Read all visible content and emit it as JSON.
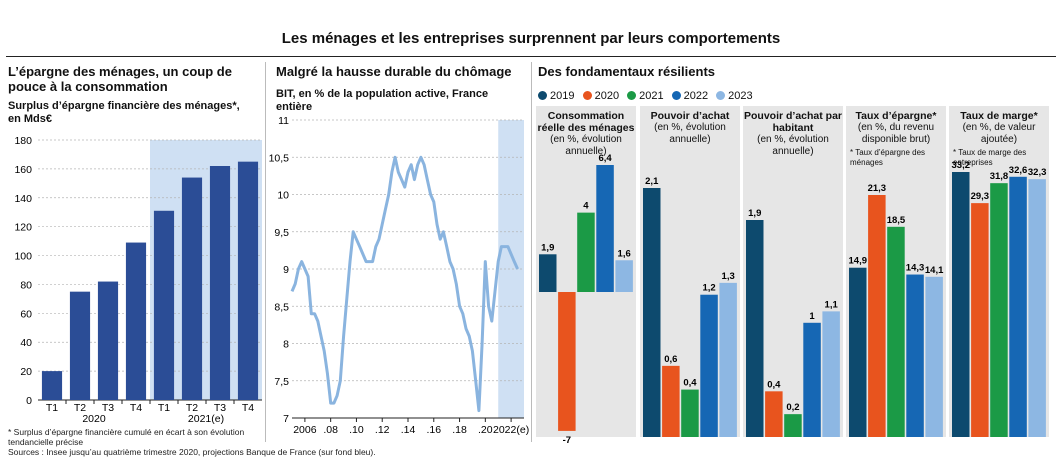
{
  "title": "Les ménages et les entreprises surprennent par leurs comportements",
  "panel1": {
    "title": "L’épargne des ménages, un coup de pouce à la consommation",
    "subtitle": "Surplus d’épargne financière des ménages*, en Mds€",
    "footnote": "* Surplus d’épargne financière cumulé en écart à son évolution tendancielle précise",
    "year_labels": [
      "2020",
      "2021(e)"
    ]
  },
  "panel2": {
    "title": "Malgré la hausse durable du chômage",
    "subtitle": "BIT, en % de la population active, France entière"
  },
  "panel3": {
    "title": "Des fondamentaux résilients",
    "subcharts": [
      {
        "title": "Consommation réelle des ménages",
        "unit": "(en %, évolution annuelle)",
        "note": ""
      },
      {
        "title": "Pouvoir d’achat",
        "unit": "(en %, évolution annuelle)",
        "note": ""
      },
      {
        "title": "Pouvoir d’achat par habitant",
        "unit": "(en %, évolution annuelle)",
        "note": ""
      },
      {
        "title": "Taux d’épargne*",
        "unit": "(en %, du revenu disponible brut)",
        "note": "* Taux d’épargne des ménages"
      },
      {
        "title": "Taux de marge*",
        "unit": "(en %, de valeur ajoutée)",
        "note": "* Taux de marge des entreprises"
      }
    ]
  },
  "sources": "Sources : Insee jusqu’au quatrième trimestre 2020, projections Banque de France (sur fond bleu).",
  "colors": {
    "bar_dark_blue": "#2b4d96",
    "line_blue": "#8ab4df",
    "shade": "#cfe0f3",
    "grey_panel": "#e6e6e6",
    "y2019": "#0d4a6e",
    "y2020": "#e8541e",
    "y2021": "#1b9a46",
    "y2022": "#1667b4",
    "y2023": "#8db7e3"
  },
  "chart_data": [
    {
      "type": "bar",
      "categories": [
        "T1",
        "T2",
        "T3",
        "T4",
        "T1",
        "T2",
        "T3",
        "T4"
      ],
      "values": [
        20,
        75,
        82,
        109,
        131,
        154,
        162,
        165
      ],
      "ylim": [
        0,
        180
      ],
      "yticks": [
        0,
        20,
        40,
        60,
        80,
        100,
        120,
        140,
        160,
        180
      ],
      "projection_from_index": 4,
      "grid": true
    },
    {
      "type": "line",
      "x_tick_labels": [
        "2006",
        ".08",
        ".10",
        ".12",
        ".14",
        ".16",
        ".18",
        ".20",
        "2022(e)"
      ],
      "x_tick_values": [
        2006,
        2008,
        2010,
        2012,
        2014,
        2016,
        2018,
        2020,
        2022
      ],
      "ylim": [
        7,
        11
      ],
      "yticks": [
        7,
        7.5,
        8,
        8.5,
        9,
        9.5,
        10,
        10.5,
        11
      ],
      "ytick_labels": [
        "7",
        "7,5",
        "8",
        "8,5",
        "9",
        "9,5",
        "10",
        "10,5",
        "11"
      ],
      "projection_from": 2021.0,
      "x": [
        2005.0,
        2005.25,
        2005.5,
        2005.75,
        2006.0,
        2006.25,
        2006.5,
        2006.75,
        2007.0,
        2007.25,
        2007.5,
        2007.75,
        2008.0,
        2008.25,
        2008.5,
        2008.75,
        2009.0,
        2009.25,
        2009.5,
        2009.75,
        2010.0,
        2010.25,
        2010.5,
        2010.75,
        2011.0,
        2011.25,
        2011.5,
        2011.75,
        2012.0,
        2012.25,
        2012.5,
        2012.75,
        2013.0,
        2013.25,
        2013.5,
        2013.75,
        2014.0,
        2014.25,
        2014.5,
        2014.75,
        2015.0,
        2015.25,
        2015.5,
        2015.75,
        2016.0,
        2016.25,
        2016.5,
        2016.75,
        2017.0,
        2017.25,
        2017.5,
        2017.75,
        2018.0,
        2018.25,
        2018.5,
        2018.75,
        2019.0,
        2019.25,
        2019.5,
        2019.75,
        2020.0,
        2020.25,
        2020.5,
        2020.75,
        2021.0,
        2021.25,
        2021.5,
        2021.75,
        2022.0,
        2022.25,
        2022.5
      ],
      "y": [
        8.7,
        8.8,
        9.0,
        9.1,
        9.0,
        8.9,
        8.4,
        8.4,
        8.3,
        8.1,
        7.9,
        7.6,
        7.2,
        7.2,
        7.3,
        7.5,
        8.1,
        8.6,
        9.1,
        9.5,
        9.4,
        9.3,
        9.2,
        9.1,
        9.1,
        9.1,
        9.3,
        9.4,
        9.6,
        9.8,
        10.0,
        10.3,
        10.5,
        10.3,
        10.2,
        10.1,
        10.3,
        10.4,
        10.2,
        10.4,
        10.5,
        10.4,
        10.2,
        10.0,
        9.9,
        9.6,
        9.4,
        9.5,
        9.3,
        9.1,
        9.0,
        8.8,
        8.5,
        8.4,
        8.2,
        8.1,
        7.9,
        7.5,
        7.1,
        8.0,
        9.1,
        8.5,
        8.3,
        8.7,
        9.1,
        9.3,
        9.3,
        9.3,
        9.2,
        9.1,
        9.0
      ]
    },
    {
      "type": "bar",
      "series_names": [
        "2019",
        "2020",
        "2021",
        "2022",
        "2023"
      ],
      "categories": [
        "Consommation réelle des ménages",
        "Pouvoir d’achat",
        "Pouvoir d’achat par habitant",
        "Taux d’épargne*",
        "Taux de marge*"
      ],
      "groups": [
        {
          "values": [
            1.9,
            -7,
            4,
            6.4,
            1.6
          ],
          "labels": [
            "1,9",
            "-7",
            "4",
            "6,4",
            "1,6"
          ],
          "ylim": [
            -7.5,
            9.5
          ]
        },
        {
          "values": [
            2.1,
            0.6,
            0.4,
            1.2,
            1.3
          ],
          "labels": [
            "2,1",
            "0,6",
            "0,4",
            "1,2",
            "1,3"
          ],
          "ylim": [
            0,
            2.6
          ]
        },
        {
          "values": [
            1.9,
            0.4,
            0.2,
            1,
            1.1
          ],
          "labels": [
            "1,9",
            "0,4",
            "0,2",
            "1",
            "1,1"
          ],
          "ylim": [
            0,
            2.35
          ]
        },
        {
          "values": [
            14.9,
            21.3,
            18.5,
            14.3,
            14.1
          ],
          "labels": [
            "14,9",
            "21,3",
            "18,5",
            "14,3",
            "14,1"
          ],
          "ylim": [
            0,
            26
          ]
        },
        {
          "values": [
            33.2,
            29.3,
            31.8,
            32.6,
            32.3
          ],
          "labels": [
            "33,2",
            "29,3",
            "31,8",
            "32,6",
            "32,3"
          ],
          "ylim": [
            0,
            38.5
          ]
        }
      ],
      "legend": [
        "2019",
        "2020",
        "2021",
        "2022",
        "2023"
      ],
      "legend_position": "top"
    }
  ]
}
